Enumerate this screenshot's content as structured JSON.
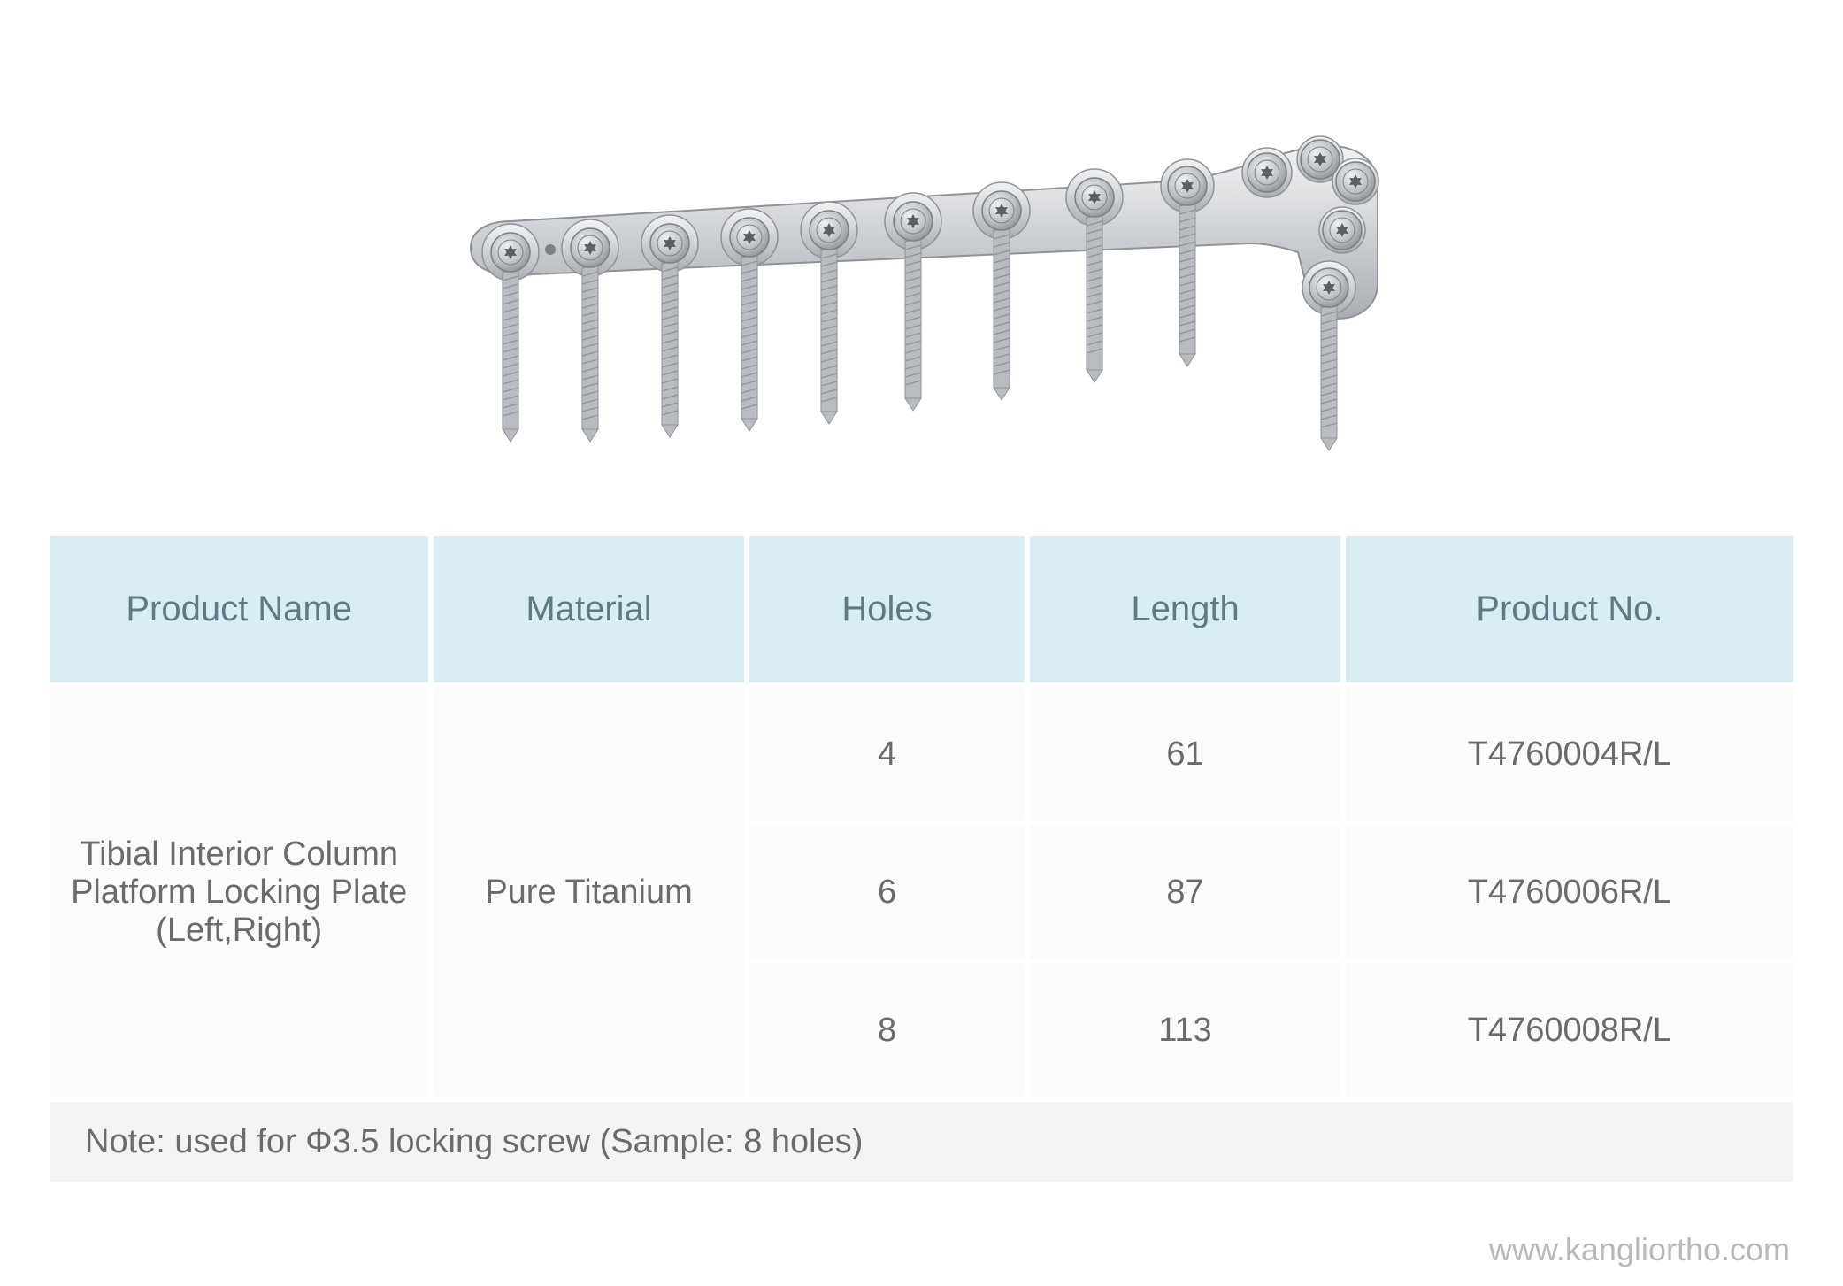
{
  "image": {
    "plate_color_light": "#e8e9eb",
    "plate_color_mid": "#c9cbce",
    "plate_color_dark": "#9fa3a8",
    "screw_color": "#b8bbbf",
    "screw_thread": "#8f9398"
  },
  "table": {
    "header_bg": "#d9edf3",
    "header_color": "#5f7a85",
    "header_fontsize": 40,
    "cell_bg": "#fbfbfb",
    "cell_color": "#6b6b6b",
    "cell_fontsize": 38,
    "note_bg": "#f4f4f4",
    "border_spacing": 6,
    "columns": [
      "Product Name",
      "Material",
      "Holes",
      "Length",
      "Product No."
    ],
    "col_widths_pct": [
      22,
      18,
      16,
      18,
      26
    ],
    "product_name": "Tibial Interior Column Platform Locking Plate (Left,Right)",
    "material": "Pure Titanium",
    "rows": [
      {
        "holes": "4",
        "length": "61",
        "product_no": "T4760004R/L"
      },
      {
        "holes": "6",
        "length": "87",
        "product_no": "T4760006R/L"
      },
      {
        "holes": "8",
        "length": "113",
        "product_no": "T4760008R/L"
      }
    ],
    "note": "Note: used for Φ3.5 locking screw (Sample: 8 holes)"
  },
  "footer": {
    "text": "www.kangliortho.com",
    "color": "#b9b9b9",
    "fontsize": 36
  }
}
